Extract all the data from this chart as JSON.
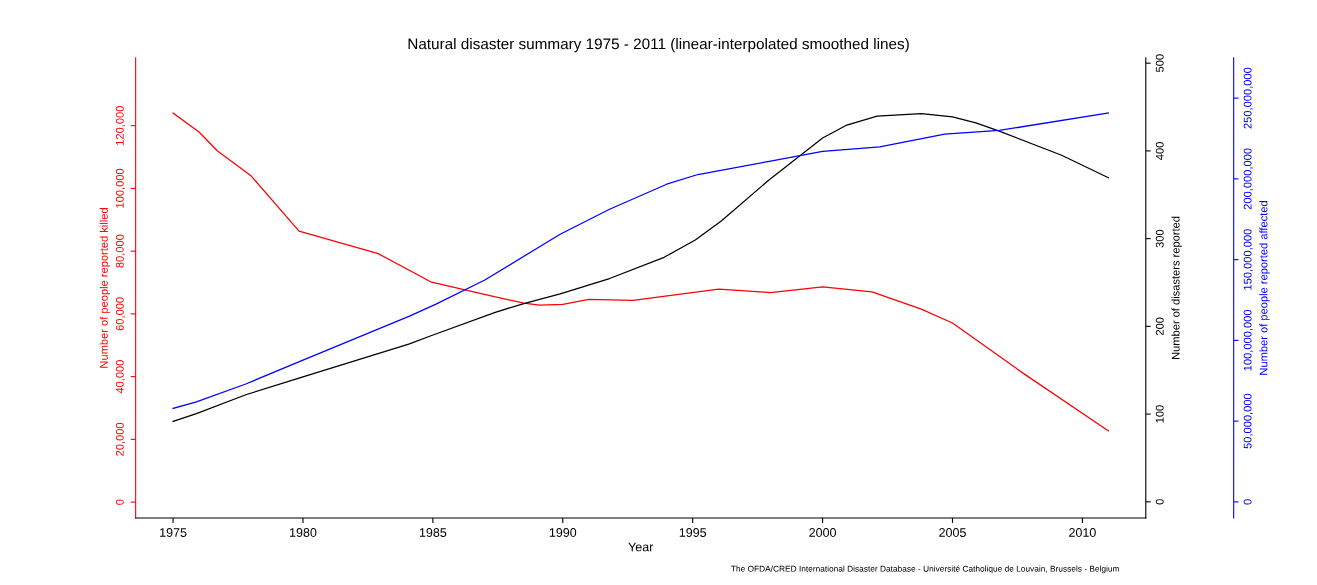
{
  "chart_data": {
    "type": "line",
    "title": "Natural disaster summary 1975 - 2011 (linear-interpolated smoothed lines)",
    "xlabel": "Year",
    "ylabel": "Number of people reported killed",
    "y2label": "Number of disasters reported",
    "y3label": "Number of people reported affected",
    "xlim": [
      1973.56,
      2012.44
    ],
    "xticks": [
      1975,
      1980,
      1985,
      1990,
      1995,
      2000,
      2005,
      2010
    ],
    "ylim": [
      -5070,
      141600
    ],
    "yticks": [
      {
        "value": 0,
        "label": "0"
      },
      {
        "value": 20000,
        "label": "20,000"
      },
      {
        "value": 40000,
        "label": "40,000"
      },
      {
        "value": 60000,
        "label": "60,000"
      },
      {
        "value": 80000,
        "label": "80,000"
      },
      {
        "value": 100000,
        "label": "100,000"
      },
      {
        "value": 120000,
        "label": "120,000"
      }
    ],
    "y2lim": [
      -18.5,
      506
    ],
    "y2ticks": [
      0,
      100,
      200,
      300,
      400,
      500
    ],
    "y3lim": [
      -10000000,
      274900000
    ],
    "y3ticks": [
      {
        "value": 0,
        "label": "0"
      },
      {
        "value": 50000000,
        "label": "50,000,000"
      },
      {
        "value": 100000000,
        "label": "100,000,000"
      },
      {
        "value": 150000000,
        "label": "150,000,000"
      },
      {
        "value": 200000000,
        "label": "200,000,000"
      },
      {
        "value": 250000000,
        "label": "250,000,000"
      }
    ],
    "grid": false,
    "legend": false,
    "marker": "none",
    "line_style": "solid",
    "series": [
      {
        "color": "#ff0000",
        "axis": "y",
        "x": [
          1975,
          1976,
          1976.7,
          1978.0,
          1979.85,
          1982.9,
          1984.95,
          1987.15,
          1988.5,
          1989.1,
          1990.0,
          1991.0,
          1992.7,
          1996.0,
          1998.0,
          2000.0,
          2001.9,
          2003.8,
          2005.0,
          2007.7,
          2011.0
        ],
        "values": [
          124000,
          118000,
          112000,
          104000,
          86400,
          79200,
          70100,
          65900,
          63400,
          62800,
          63000,
          64600,
          64300,
          67900,
          66800,
          68600,
          67000,
          61500,
          57100,
          41200,
          22700
        ]
      },
      {
        "color": "#000000",
        "axis": "y2",
        "x": [
          1975,
          1975.9,
          1977.8,
          1980.0,
          1984.1,
          1984.9,
          1987.4,
          1988.5,
          1989.9,
          1991.8,
          1993.9,
          1995.1,
          1996.1,
          1997.9,
          2000.0,
          2000.9,
          2002.1,
          2003.8,
          2005.0,
          2005.9,
          2006.8,
          2009.2,
          2011.0
        ],
        "values": [
          91.6,
          100.5,
          122,
          142.4,
          180,
          189,
          216,
          226,
          237,
          254.5,
          278.7,
          298.4,
          320,
          366,
          414.7,
          429,
          439.6,
          442.6,
          438.8,
          432,
          422.5,
          395,
          369.4
        ]
      },
      {
        "color": "#0000ff",
        "axis": "y3",
        "x": [
          1975,
          1975.9,
          1977.8,
          1980.0,
          1984.1,
          1985.1,
          1987.0,
          1989.9,
          1991.8,
          1994.0,
          1995.2,
          1998.0,
          2000.0,
          2002.2,
          2004.7,
          2006.8,
          2011.0
        ],
        "values": [
          57900000,
          61900000,
          73000000,
          87800000,
          115000000,
          122300000,
          137400000,
          165700000,
          181200000,
          196700000,
          202700000,
          211000000,
          217000000,
          219800000,
          227700000,
          230000000,
          240800000
        ]
      }
    ],
    "annotations": [
      "The OFDA/CRED International Disaster Database - Université Catholique de Louvain, Brussels - Belgium"
    ]
  }
}
